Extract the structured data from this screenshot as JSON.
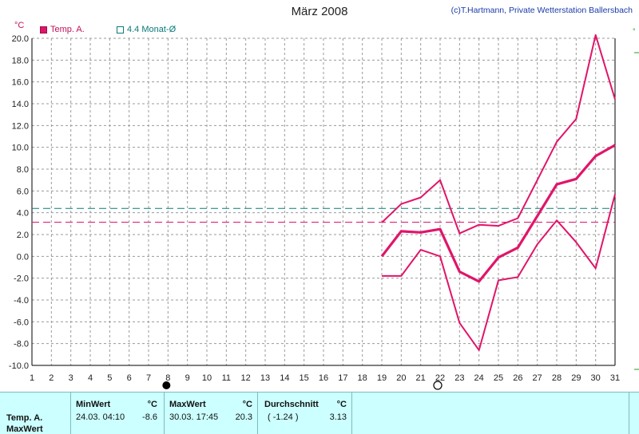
{
  "title": "März 2008",
  "copyright": "(c)T.Hartmann, Private Wetterstation Ballersbach",
  "unit_left": "°C",
  "legend": {
    "series1_label": "Temp. A.",
    "series2_label": "4.4 Monat-Ø",
    "series1_color": "#e0156a",
    "series2_color": "#0a7a7a"
  },
  "chart_data": {
    "type": "line",
    "x": [
      19,
      20,
      21,
      22,
      23,
      24,
      25,
      26,
      27,
      28,
      29,
      30,
      31
    ],
    "xlim": [
      1,
      31
    ],
    "ylim": [
      -10,
      20
    ],
    "y_ticks": [
      "20.0",
      "18.0",
      "16.0",
      "14.0",
      "12.0",
      "10.0",
      "8.0",
      "6.0",
      "4.0",
      "2.0",
      "0.0",
      "-2.0",
      "-4.0",
      "-6.0",
      "-8.0",
      "-10.0"
    ],
    "x_ticks": [
      "1",
      "2",
      "3",
      "4",
      "5",
      "6",
      "7",
      "8",
      "9",
      "10",
      "11",
      "12",
      "13",
      "14",
      "15",
      "16",
      "17",
      "18",
      "19",
      "20",
      "21",
      "22",
      "23",
      "24",
      "25",
      "26",
      "27",
      "28",
      "29",
      "30",
      "31"
    ],
    "grid": true,
    "series": [
      {
        "values": [
          3.1,
          4.8,
          5.4,
          7.0,
          2.1,
          2.9,
          2.8,
          3.5,
          7.0,
          10.5,
          12.6,
          20.3,
          14.4
        ]
      },
      {
        "values": [
          0.0,
          2.3,
          2.2,
          2.5,
          -1.4,
          -2.3,
          -0.1,
          0.8,
          3.7,
          6.6,
          7.1,
          9.2,
          10.2
        ]
      },
      {
        "values": [
          -1.8,
          -1.8,
          0.6,
          0.0,
          -6.1,
          -8.6,
          -2.2,
          -1.9,
          1.1,
          3.3,
          1.3,
          -1.1,
          5.7
        ]
      }
    ],
    "reference_lines": [
      {
        "value": 4.4,
        "color": "#0a7a7a"
      },
      {
        "value": 3.13,
        "color": "#e0156a"
      }
    ],
    "moon_markers": [
      {
        "day": 8,
        "phase": "new-moon"
      },
      {
        "day": 22,
        "phase": "full-moon"
      }
    ]
  },
  "table": {
    "row_label_1": "Temp. A.",
    "row_label_2": "MaxWert",
    "min_header": "MinWert",
    "min_unit": "°C",
    "min_datetime": "24.03.  04:10",
    "min_value": "-8.6",
    "max_header": "MaxWert",
    "max_unit": "°C",
    "max_datetime": "30.03.  17:45",
    "max_value": "20.3",
    "avg_header": "Durchschnitt",
    "avg_unit": "°C",
    "avg_paren": "( -1.24 )",
    "avg_value": "3.13"
  }
}
